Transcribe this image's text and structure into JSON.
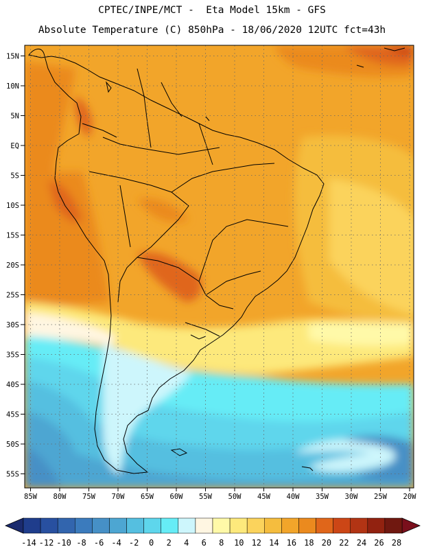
{
  "header": {
    "line1": "CPTEC/INPE/MCT -  Eta Model 15km - GFS",
    "line2": "Absolute Temperature (C) 850hPa - 18/06/2020 12UTC fct=43h"
  },
  "map": {
    "lat_labels": [
      "15N",
      "10N",
      "5N",
      "EQ",
      "5S",
      "10S",
      "15S",
      "20S",
      "25S",
      "30S",
      "35S",
      "40S",
      "45S",
      "50S",
      "55S"
    ],
    "lon_labels": [
      "85W",
      "80W",
      "75W",
      "70W",
      "65W",
      "60W",
      "55W",
      "50W",
      "45W",
      "40W",
      "35W",
      "30W",
      "25W",
      "20W"
    ],
    "extent": {
      "lon_min": -86,
      "lon_max": -19,
      "lat_min": -57.7,
      "lat_max": 16.6
    },
    "grid": "dotted"
  },
  "colorbar": {
    "labels": [
      "-14",
      "-12",
      "-10",
      "-8",
      "-6",
      "-4",
      "-2",
      "0",
      "2",
      "4",
      "6",
      "8",
      "10",
      "12",
      "14",
      "16",
      "18",
      "20",
      "22",
      "24",
      "26",
      "28"
    ],
    "colors": [
      "#1f3d8c",
      "#2850a0",
      "#3265ae",
      "#3b7bbd",
      "#4690c6",
      "#4da6d2",
      "#55bfe0",
      "#5ed6ec",
      "#66ecf6",
      "#cdf6fc",
      "#fff6e2",
      "#fff9a8",
      "#fde97c",
      "#fbd35c",
      "#f5bd3e",
      "#f2a52a",
      "#eb8a1e",
      "#e0661a",
      "#cc4616",
      "#b23414",
      "#922210",
      "#701810"
    ],
    "under_color": "#1a2a6e",
    "over_color": "#7a0f1c"
  }
}
